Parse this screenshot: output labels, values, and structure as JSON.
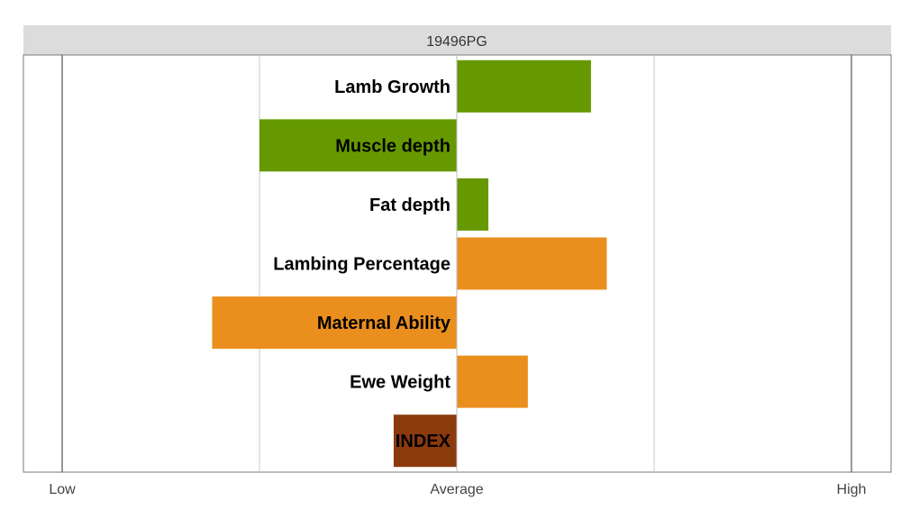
{
  "chart_data": {
    "type": "bar",
    "orientation": "horizontal",
    "title": "19496PG",
    "categories": [
      "Lamb Growth",
      "Muscle depth",
      "Fat depth",
      "Lambing Percentage",
      "Maternal Ability",
      "Ewe Weight",
      "INDEX"
    ],
    "values": [
      0.68,
      -1.0,
      0.16,
      0.76,
      -1.24,
      0.36,
      -0.32
    ],
    "colors": [
      "#669900",
      "#669900",
      "#669900",
      "#EA8F1D",
      "#EA8F1D",
      "#EA8F1D",
      "#8B3A0E"
    ],
    "xlim": [
      -2,
      2
    ],
    "x_tick_labels": [
      "Low",
      "Average",
      "High"
    ],
    "x_tick_values": [
      -2,
      0,
      2
    ],
    "gridlines": [
      -2,
      -1,
      0,
      1,
      2
    ],
    "grid": true,
    "legend": "none",
    "header_color": "#DCDCDC",
    "label_color": "#000000"
  }
}
